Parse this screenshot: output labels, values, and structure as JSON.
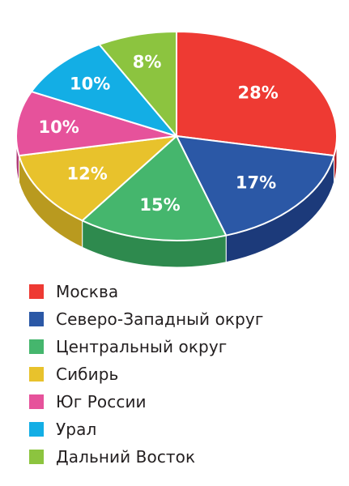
{
  "chart_data": {
    "type": "pie",
    "style": "3d",
    "categories": [
      "Москва",
      "Северо-Западный округ",
      "Центральный округ",
      "Сибирь",
      "Юг России",
      "Урал",
      "Дальний Восток"
    ],
    "values": [
      28,
      17,
      15,
      12,
      10,
      10,
      8
    ],
    "labels": [
      "28%",
      "17%",
      "15%",
      "12%",
      "10%",
      "10%",
      "8%"
    ],
    "colors": [
      "#ee3a33",
      "#2b58a6",
      "#45b66d",
      "#e8c22c",
      "#e6529b",
      "#13aee5",
      "#8cc43f"
    ],
    "side_colors": [
      "#b01e25",
      "#1c3a7a",
      "#2e8a4e",
      "#b99a1f",
      "#b03a76",
      "#0d86b3",
      "#6c9a2e"
    ],
    "legend_position": "bottom-left",
    "title": "",
    "xlabel": "",
    "ylabel": ""
  }
}
